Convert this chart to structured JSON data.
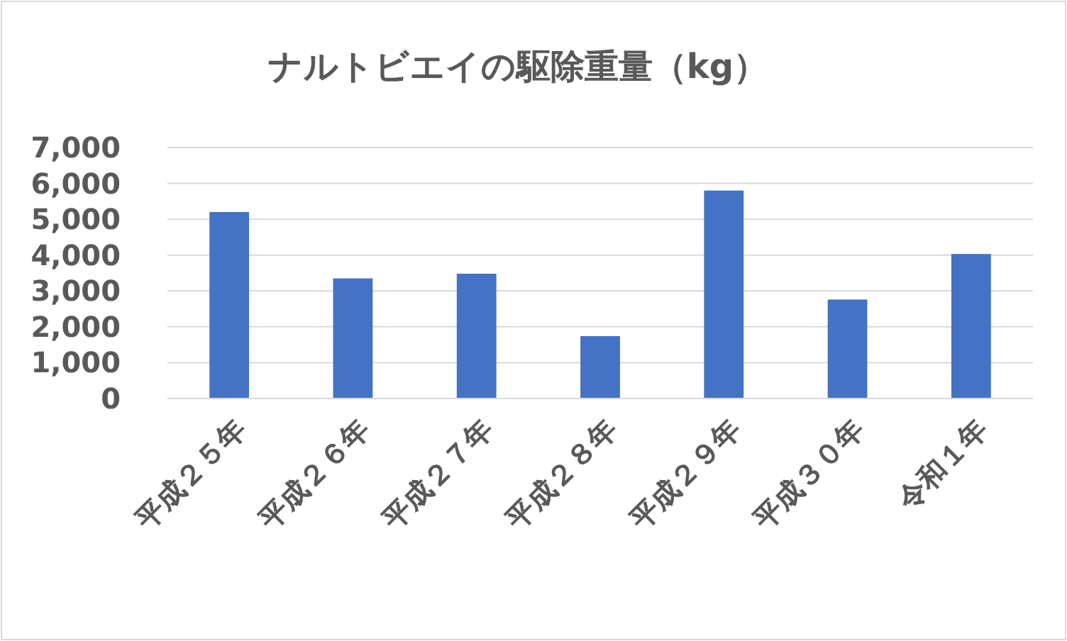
{
  "chart_data": {
    "type": "bar",
    "title": "ナルトビエイの駆除重量（kg）",
    "categories": [
      "平成２５年",
      "平成２６年",
      "平成２７年",
      "平成２８年",
      "平成２９年",
      "平成３０年",
      "令和１年"
    ],
    "values": [
      5200,
      3350,
      3480,
      1740,
      5800,
      2760,
      4030
    ],
    "color": "#4472c4",
    "ylim": [
      0,
      7000
    ],
    "yticks": [
      {
        "value": 0,
        "label": "0"
      },
      {
        "value": 1000,
        "label": "1,000"
      },
      {
        "value": 2000,
        "label": "2,000"
      },
      {
        "value": 3000,
        "label": "3,000"
      },
      {
        "value": 4000,
        "label": "4,000"
      },
      {
        "value": 5000,
        "label": "5,000"
      },
      {
        "value": 6000,
        "label": "6,000"
      },
      {
        "value": 7000,
        "label": "7,000"
      }
    ],
    "grid": "y"
  }
}
